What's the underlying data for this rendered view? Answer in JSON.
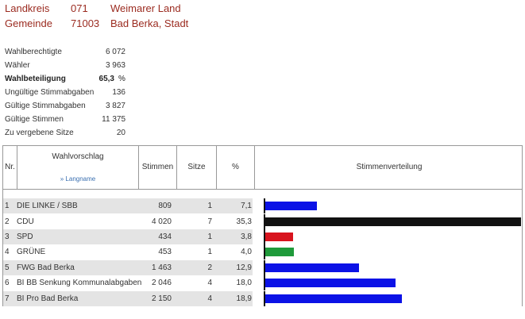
{
  "header": {
    "district": {
      "label": "Landkreis",
      "code": "071",
      "name": "Weimarer Land"
    },
    "municipality": {
      "label": "Gemeinde",
      "code": "71003",
      "name": "Bad Berka, Stadt"
    }
  },
  "stats": [
    {
      "label": "Wahlberechtigte",
      "value": "6 072"
    },
    {
      "label": "Wähler",
      "value": "3 963"
    },
    {
      "label": "Wahlbeteiligung",
      "value": "65,3",
      "unit": "%"
    },
    {
      "label": "Ungültige Stimmabgaben",
      "value": "136"
    },
    {
      "label": "Gültige Stimmabgaben",
      "value": "3 827"
    },
    {
      "label": "Gültige Stimmen",
      "value": "11 375"
    },
    {
      "label": "Zu vergebene Sitze",
      "value": "20"
    }
  ],
  "table": {
    "headers": {
      "nr": "Nr.",
      "name": "Wahlvorschlag",
      "longname_link": "» Langname",
      "votes": "Stimmen",
      "seats": "Sitze",
      "pct": "%",
      "distribution": "Stimmenverteilung"
    },
    "rows": [
      {
        "nr": "1",
        "name": "DIE LINKE / SBB",
        "votes": "809",
        "seats": "1",
        "pct": "7,1",
        "share": 7.1,
        "color": "#0b12e6"
      },
      {
        "nr": "2",
        "name": "CDU",
        "votes": "4 020",
        "seats": "7",
        "pct": "35,3",
        "share": 35.3,
        "color": "#111111"
      },
      {
        "nr": "3",
        "name": "SPD",
        "votes": "434",
        "seats": "1",
        "pct": "3,8",
        "share": 3.8,
        "color": "#d8141e"
      },
      {
        "nr": "4",
        "name": "GRÜNE",
        "votes": "453",
        "seats": "1",
        "pct": "4,0",
        "share": 4.0,
        "color": "#1f9a3a"
      },
      {
        "nr": "5",
        "name": "FWG Bad Berka",
        "votes": "1 463",
        "seats": "2",
        "pct": "12,9",
        "share": 12.9,
        "color": "#0b12e6"
      },
      {
        "nr": "6",
        "name": "BI BB Senkung Kommunalabgaben",
        "votes": "2 046",
        "seats": "4",
        "pct": "18,0",
        "share": 18.0,
        "color": "#0b12e6"
      },
      {
        "nr": "7",
        "name": "BI Pro Bad Berka",
        "votes": "2 150",
        "seats": "4",
        "pct": "18,9",
        "share": 18.9,
        "color": "#0b12e6"
      }
    ]
  }
}
